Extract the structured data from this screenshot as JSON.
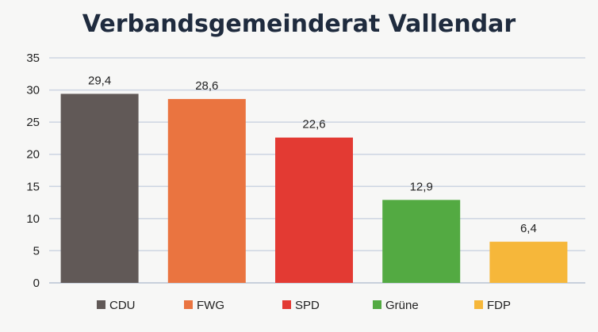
{
  "chart_data": {
    "type": "bar",
    "title": "Verbandsgemeinderat Vallendar",
    "categories": [
      "CDU",
      "FWG",
      "SPD",
      "Grüne",
      "FDP"
    ],
    "values": [
      29.4,
      28.6,
      22.6,
      12.9,
      6.4
    ],
    "value_labels": [
      "29,4",
      "28,6",
      "22,6",
      "12,9",
      "6,4"
    ],
    "colors": [
      "#615957",
      "#ea7440",
      "#e33a33",
      "#53aa42",
      "#f6b73a"
    ],
    "ylim": [
      0,
      35
    ],
    "yticks": [
      0,
      5,
      10,
      15,
      20,
      25,
      30,
      35
    ],
    "xlabel": "",
    "ylabel": "",
    "grid": true,
    "legend_position": "bottom"
  }
}
